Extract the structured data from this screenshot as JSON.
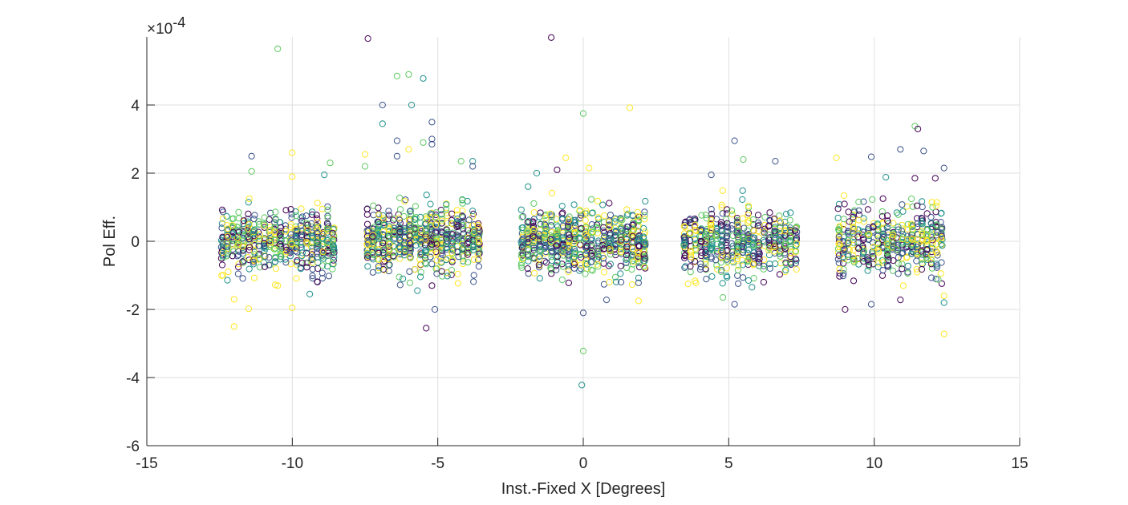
{
  "chart_data": {
    "type": "scatter",
    "title": "",
    "xlabel": "Inst.-Fixed X [Degrees]",
    "ylabel": "Pol Eff.",
    "y_exponent_label": "×10",
    "y_exponent_power": "-4",
    "xlim": [
      -15,
      15
    ],
    "ylim": [
      -6,
      6
    ],
    "x_ticks": [
      "-15",
      "-10",
      "-5",
      "0",
      "5",
      "10",
      "15"
    ],
    "y_ticks": [
      "-6",
      "-4",
      "-2",
      "0",
      "2",
      "4"
    ],
    "x_tick_values": [
      -15,
      -10,
      -5,
      0,
      5,
      10,
      15
    ],
    "y_tick_values": [
      -6,
      -4,
      -2,
      0,
      2,
      4
    ],
    "grid": true,
    "marker": "open-circle",
    "colormap": [
      "#440154",
      "#3b528b",
      "#21918c",
      "#5ec962",
      "#fde725"
    ],
    "clusters": [
      {
        "x_range": [
          -12.5,
          -8.5
        ],
        "y_center": 0.0,
        "y_spread": 0.45,
        "count": 520
      },
      {
        "x_range": [
          -7.5,
          -3.5
        ],
        "y_center": 0.05,
        "y_spread": 0.45,
        "count": 620
      },
      {
        "x_range": [
          -2.2,
          2.2
        ],
        "y_center": 0.0,
        "y_spread": 0.45,
        "count": 640
      },
      {
        "x_range": [
          3.4,
          7.4
        ],
        "y_center": 0.0,
        "y_spread": 0.45,
        "count": 520
      },
      {
        "x_range": [
          8.7,
          12.4
        ],
        "y_center": 0.0,
        "y_spread": 0.45,
        "count": 460
      }
    ],
    "outliers": [
      {
        "x": -10.5,
        "y": 5.65
      },
      {
        "x": -7.4,
        "y": 5.95
      },
      {
        "x": -1.1,
        "y": 5.98
      },
      {
        "x": -6.4,
        "y": 4.85
      },
      {
        "x": -6.0,
        "y": 4.9
      },
      {
        "x": -5.5,
        "y": 4.78
      },
      {
        "x": -6.9,
        "y": 4.0
      },
      {
        "x": -5.9,
        "y": 4.0
      },
      {
        "x": -6.9,
        "y": 3.45
      },
      {
        "x": -5.2,
        "y": 3.5
      },
      {
        "x": -5.2,
        "y": 3.0
      },
      {
        "x": -5.2,
        "y": 2.85
      },
      {
        "x": -6.4,
        "y": 2.95
      },
      {
        "x": -6.0,
        "y": 2.7
      },
      {
        "x": -5.5,
        "y": 2.9
      },
      {
        "x": -7.5,
        "y": 2.55
      },
      {
        "x": -6.4,
        "y": 2.5
      },
      {
        "x": -4.2,
        "y": 2.35
      },
      {
        "x": -3.8,
        "y": 2.35
      },
      {
        "x": -3.8,
        "y": 2.2
      },
      {
        "x": -7.5,
        "y": 2.2
      },
      {
        "x": -11.4,
        "y": 2.5
      },
      {
        "x": -10.0,
        "y": 2.6
      },
      {
        "x": -11.4,
        "y": 2.05
      },
      {
        "x": -8.7,
        "y": 2.3
      },
      {
        "x": -10.0,
        "y": 1.9
      },
      {
        "x": -8.9,
        "y": 1.95
      },
      {
        "x": 0.0,
        "y": 3.75
      },
      {
        "x": 1.6,
        "y": 3.92
      },
      {
        "x": -0.6,
        "y": 2.45
      },
      {
        "x": 0.2,
        "y": 2.15
      },
      {
        "x": -1.6,
        "y": 2.0
      },
      {
        "x": -0.9,
        "y": 2.1
      },
      {
        "x": 5.2,
        "y": 2.95
      },
      {
        "x": 5.5,
        "y": 2.4
      },
      {
        "x": 6.6,
        "y": 2.35
      },
      {
        "x": 4.4,
        "y": 1.95
      },
      {
        "x": 8.7,
        "y": 2.45
      },
      {
        "x": 9.9,
        "y": 2.48
      },
      {
        "x": 10.9,
        "y": 2.7
      },
      {
        "x": 11.4,
        "y": 3.38
      },
      {
        "x": 11.5,
        "y": 3.3
      },
      {
        "x": 11.7,
        "y": 2.65
      },
      {
        "x": 12.4,
        "y": 2.15
      },
      {
        "x": 10.4,
        "y": 1.88
      },
      {
        "x": 11.4,
        "y": 1.85
      },
      {
        "x": 12.1,
        "y": 1.85
      },
      {
        "x": -12.0,
        "y": -2.5
      },
      {
        "x": -11.5,
        "y": -1.98
      },
      {
        "x": -10.0,
        "y": -1.95
      },
      {
        "x": -12.0,
        "y": -1.7
      },
      {
        "x": -9.4,
        "y": -1.55
      },
      {
        "x": -10.5,
        "y": -1.3
      },
      {
        "x": -5.4,
        "y": -2.55
      },
      {
        "x": -5.1,
        "y": -2.0
      },
      {
        "x": -5.2,
        "y": -1.3
      },
      {
        "x": -5.7,
        "y": -1.45
      },
      {
        "x": -6.2,
        "y": -1.1
      },
      {
        "x": 0.0,
        "y": -2.1
      },
      {
        "x": 0.0,
        "y": -3.22
      },
      {
        "x": -0.05,
        "y": -4.22
      },
      {
        "x": 0.8,
        "y": -1.72
      },
      {
        "x": 1.3,
        "y": -1.2
      },
      {
        "x": 1.9,
        "y": -1.75
      },
      {
        "x": 1.9,
        "y": -1.22
      },
      {
        "x": -0.5,
        "y": -1.22
      },
      {
        "x": 0.9,
        "y": -1.2
      },
      {
        "x": 3.6,
        "y": -1.25
      },
      {
        "x": 4.8,
        "y": -1.65
      },
      {
        "x": 5.2,
        "y": -1.85
      },
      {
        "x": 5.8,
        "y": -1.35
      },
      {
        "x": 6.2,
        "y": -1.2
      },
      {
        "x": 9.0,
        "y": -2.0
      },
      {
        "x": 9.9,
        "y": -1.85
      },
      {
        "x": 10.9,
        "y": -1.72
      },
      {
        "x": 11.0,
        "y": -1.3
      },
      {
        "x": 12.4,
        "y": -1.6
      },
      {
        "x": 12.4,
        "y": -1.8
      },
      {
        "x": 12.4,
        "y": -2.72
      },
      {
        "x": 12.2,
        "y": -1.12
      },
      {
        "x": 10.3,
        "y": -0.85
      }
    ]
  }
}
